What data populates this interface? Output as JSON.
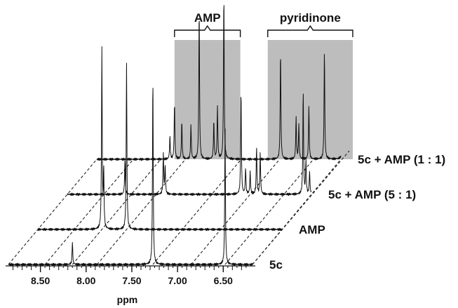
{
  "chart_data": {
    "type": "line",
    "title": "",
    "xlabel": "ppm",
    "ylabel": "",
    "x_direction": "reversed",
    "xlim": [
      8.85,
      6.18
    ],
    "x_ticks": [
      "8.50",
      "8.00",
      "7.50",
      "7.00",
      "6.50"
    ],
    "x_tick_values": [
      8.5,
      8.0,
      7.5,
      7.0,
      6.5
    ],
    "grid": false,
    "highlight_regions": [
      {
        "label": "AMP",
        "range": [
          8.0,
          7.28
        ],
        "color": "#bdbdbd"
      },
      {
        "label": "pyridinone",
        "range": [
          6.98,
          6.05
        ],
        "color": "#bdbdbd"
      }
    ],
    "series": [
      {
        "name": "5c",
        "peaks": [
          {
            "ppm": 8.15,
            "height": 0.12
          },
          {
            "ppm": 7.27,
            "height": 1.0
          },
          {
            "ppm": 6.48,
            "height": 0.72
          }
        ]
      },
      {
        "name": "AMP",
        "peaks": [
          {
            "ppm": 8.15,
            "height": 0.95
          },
          {
            "ppm": 8.13,
            "height": 0.3
          },
          {
            "ppm": 7.88,
            "height": 0.88
          }
        ]
      },
      {
        "name": "5c + AMP (5 : 1)",
        "peaks": [
          {
            "ppm": 8.22,
            "height": 0.18
          },
          {
            "ppm": 7.8,
            "height": 0.22
          },
          {
            "ppm": 7.78,
            "height": 0.15
          },
          {
            "ppm": 6.95,
            "height": 0.55
          },
          {
            "ppm": 6.9,
            "height": 0.14
          },
          {
            "ppm": 6.85,
            "height": 0.12
          },
          {
            "ppm": 6.78,
            "height": 0.25
          },
          {
            "ppm": 6.74,
            "height": 0.22
          },
          {
            "ppm": 6.27,
            "height": 0.55
          },
          {
            "ppm": 6.24,
            "height": 0.18
          },
          {
            "ppm": 6.2,
            "height": 0.12
          },
          {
            "ppm": 6.16,
            "height": 0.1
          }
        ]
      },
      {
        "name": "5c + AMP (1 : 1)",
        "peaks": [
          {
            "ppm": 8.05,
            "height": 0.12
          },
          {
            "ppm": 8.0,
            "height": 0.3
          },
          {
            "ppm": 7.92,
            "height": 0.2
          },
          {
            "ppm": 7.82,
            "height": 0.18
          },
          {
            "ppm": 7.73,
            "height": 0.8
          },
          {
            "ppm": 7.57,
            "height": 0.2
          },
          {
            "ppm": 7.53,
            "height": 0.28
          },
          {
            "ppm": 7.46,
            "height": 0.88
          },
          {
            "ppm": 6.84,
            "height": 0.58
          },
          {
            "ppm": 6.67,
            "height": 0.22
          },
          {
            "ppm": 6.64,
            "height": 0.18
          },
          {
            "ppm": 6.53,
            "height": 0.28
          },
          {
            "ppm": 6.36,
            "height": 0.58
          },
          {
            "ppm": 6.16,
            "height": 0.3
          },
          {
            "ppm": 6.13,
            "height": 0.28
          },
          {
            "ppm": 6.1,
            "height": 0.2
          },
          {
            "ppm": 6.06,
            "height": 0.2
          }
        ]
      }
    ]
  }
}
